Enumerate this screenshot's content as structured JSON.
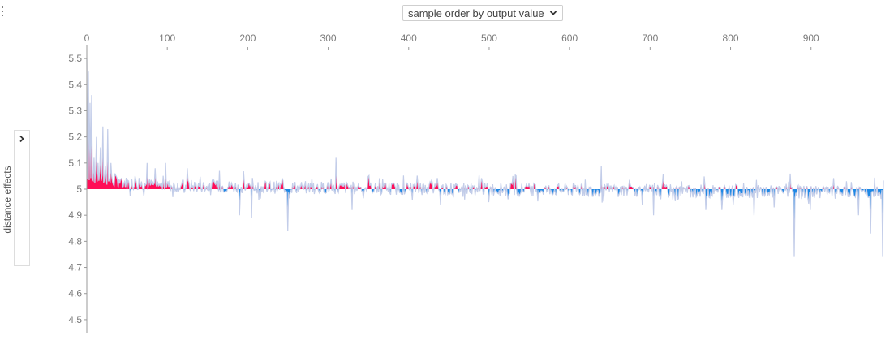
{
  "menu": {
    "icon": "kebab-menu-icon"
  },
  "x_order": {
    "selected": "sample order by output value",
    "icon": "chevron-down-icon"
  },
  "y_axis": {
    "label": "distance effects",
    "toggle_icon": "chevron-right-icon"
  },
  "colors": {
    "positive": "#ff0d57",
    "negative": "#1e88e5",
    "outline": "#c3cde9",
    "axis": "#999999"
  },
  "chart_data": {
    "type": "area",
    "xlim": [
      0,
      990
    ],
    "ylim": [
      4.45,
      5.55
    ],
    "baseline": 5.0,
    "x_ticks": [
      0,
      100,
      200,
      300,
      400,
      500,
      600,
      700,
      800,
      900
    ],
    "x_tick_labels": [
      "0",
      "100",
      "200",
      "300",
      "400",
      "500",
      "600",
      "700",
      "800",
      "900"
    ],
    "y_ticks": [
      4.5,
      4.6,
      4.7,
      4.8,
      4.9,
      5.0,
      5.1,
      5.2,
      5.3,
      5.4,
      5.5
    ],
    "y_tick_labels": [
      "4.5",
      "4.6",
      "4.7",
      "4.8",
      "4.9",
      "5",
      "5.1",
      "5.2",
      "5.3",
      "5.4",
      "5.5"
    ],
    "spikes": [
      [
        0,
        5.5
      ],
      [
        2,
        5.45
      ],
      [
        4,
        5.33
      ],
      [
        6,
        5.36
      ],
      [
        9,
        5.12
      ],
      [
        12,
        5.2
      ],
      [
        14,
        5.1
      ],
      [
        17,
        5.16
      ],
      [
        20,
        5.24
      ],
      [
        23,
        5.09
      ],
      [
        26,
        5.23
      ],
      [
        30,
        5.1
      ],
      [
        35,
        5.06
      ],
      [
        40,
        5.04
      ],
      [
        60,
        5.05
      ],
      [
        75,
        5.1
      ],
      [
        85,
        5.08
      ],
      [
        98,
        5.1
      ],
      [
        125,
        5.08
      ],
      [
        165,
        5.07
      ],
      [
        190,
        4.9
      ],
      [
        205,
        4.89
      ],
      [
        250,
        4.84
      ],
      [
        310,
        5.12
      ],
      [
        330,
        4.92
      ],
      [
        440,
        4.94
      ],
      [
        500,
        4.95
      ],
      [
        530,
        5.05
      ],
      [
        640,
        5.09
      ],
      [
        705,
        4.9
      ],
      [
        735,
        4.96
      ],
      [
        770,
        4.92
      ],
      [
        790,
        4.92
      ],
      [
        830,
        4.9
      ],
      [
        855,
        4.93
      ],
      [
        880,
        4.74
      ],
      [
        900,
        4.92
      ],
      [
        960,
        4.9
      ],
      [
        975,
        4.83
      ],
      [
        990,
        4.74
      ]
    ]
  }
}
